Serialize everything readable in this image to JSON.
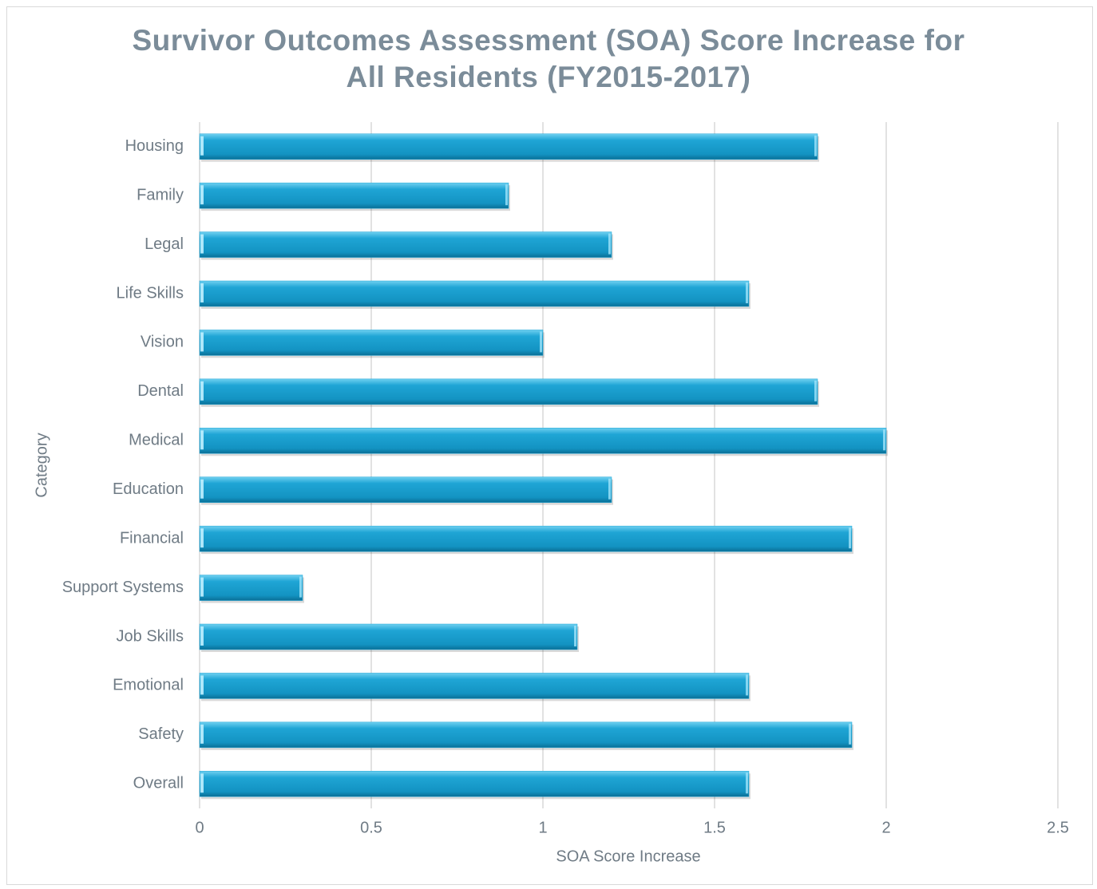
{
  "chart_data": {
    "type": "bar",
    "orientation": "horizontal",
    "title": "Survivor Outcomes Assessment (SOA) Score Increase for All Residents (FY2015-2017)",
    "x_label": "SOA Score Increase",
    "y_label": "Category",
    "categories": [
      "Housing",
      "Family",
      "Legal",
      "Life Skills",
      "Vision",
      "Dental",
      "Medical",
      "Education",
      "Financial",
      "Support Systems",
      "Job Skills",
      "Emotional",
      "Safety",
      "Overall"
    ],
    "values": [
      1.8,
      0.9,
      1.2,
      1.6,
      1.0,
      1.8,
      2.0,
      1.2,
      1.9,
      0.3,
      1.1,
      1.6,
      1.9,
      1.6
    ],
    "color": "#1fa5d5",
    "xlim": [
      0,
      2.5
    ],
    "xticks": [
      0,
      0.5,
      1,
      1.5,
      2,
      2.5
    ],
    "grid": true
  }
}
